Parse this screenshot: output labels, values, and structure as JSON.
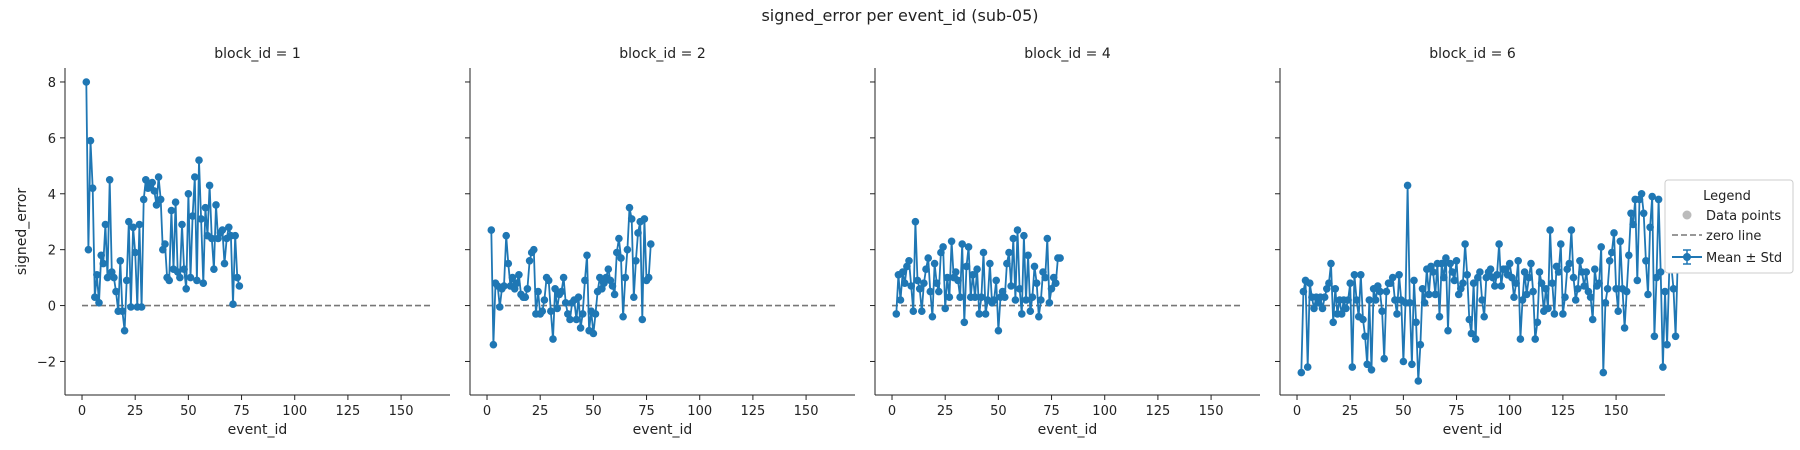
{
  "chart_data": {
    "type": "line",
    "title": "signed_error per event_id (sub-05)",
    "xlabel": "event_id",
    "ylabel": "signed_error",
    "xlim": [
      -8,
      173
    ],
    "ylim": [
      -3.2,
      8.5
    ],
    "x_ticks": [
      0,
      25,
      50,
      75,
      100,
      125,
      150
    ],
    "y_ticks": [
      -2,
      0,
      2,
      4,
      6,
      8
    ],
    "x_tick_labels": [
      "0",
      "25",
      "50",
      "75",
      "100",
      "125",
      "150"
    ],
    "y_tick_labels": [
      "−2",
      "0",
      "2",
      "4",
      "6",
      "8"
    ],
    "reference_line": {
      "y": 0,
      "x_range": [
        0,
        165
      ],
      "style": "dashed",
      "color": "#777777"
    },
    "color": "#1f77b4",
    "legend": {
      "title": "Legend",
      "placement": "right",
      "entries": [
        "Data points",
        "zero line",
        "Mean ± Std"
      ]
    },
    "panels": [
      {
        "title": "block_id = 1",
        "x_start": 2,
        "values": [
          8.0,
          2.0,
          5.9,
          4.2,
          0.3,
          1.1,
          0.1,
          1.8,
          1.5,
          2.9,
          1.0,
          4.5,
          1.2,
          1.0,
          0.5,
          -0.2,
          1.6,
          -0.2,
          -0.9,
          0.9,
          3.0,
          -0.05,
          2.8,
          1.9,
          -0.05,
          2.9,
          -0.05,
          3.8,
          4.5,
          4.2,
          4.3,
          4.4,
          4.1,
          3.6,
          4.6,
          3.8,
          2.0,
          2.2,
          1.0,
          0.9,
          3.4,
          1.3,
          3.7,
          1.2,
          1.0,
          2.9,
          1.3,
          0.6,
          4.0,
          1.0,
          3.2,
          4.6,
          0.9,
          5.2,
          3.1,
          0.8,
          3.5,
          2.5,
          4.3,
          2.4,
          1.3,
          3.6,
          2.4,
          2.6,
          2.7,
          1.5,
          2.4,
          2.8,
          2.5,
          0.05,
          2.5,
          1.0,
          0.7
        ]
      },
      {
        "title": "block_id = 2",
        "x_start": 2,
        "values": [
          2.7,
          -1.4,
          0.8,
          0.7,
          -0.05,
          0.6,
          0.7,
          2.5,
          1.5,
          0.7,
          1.0,
          0.6,
          0.8,
          1.1,
          0.4,
          0.3,
          0.3,
          0.6,
          1.6,
          1.9,
          2.0,
          -0.3,
          0.5,
          -0.3,
          -0.2,
          0.2,
          1.0,
          0.9,
          -0.2,
          -1.2,
          0.6,
          -0.1,
          0.4,
          0.5,
          1.0,
          0.1,
          -0.3,
          -0.5,
          0.1,
          0.2,
          -0.5,
          0.3,
          -0.8,
          -0.3,
          0.9,
          1.8,
          -0.9,
          -0.2,
          -1.0,
          -0.3,
          0.5,
          1.0,
          0.6,
          0.8,
          1.0,
          1.3,
          0.9,
          0.7,
          0.4,
          1.9,
          2.4,
          1.7,
          -0.4,
          1.0,
          2.0,
          3.5,
          3.1,
          0.3,
          1.6,
          2.6,
          3.0,
          -0.5,
          3.1,
          0.9,
          1.0,
          2.2
        ]
      },
      {
        "title": "block_id = 4",
        "x_start": 2,
        "values": [
          -0.3,
          1.1,
          0.2,
          1.2,
          0.8,
          1.4,
          1.6,
          0.7,
          -0.2,
          3.0,
          0.9,
          0.6,
          -0.2,
          0.8,
          1.3,
          1.7,
          0.5,
          -0.4,
          1.5,
          0.8,
          0.5,
          1.9,
          2.1,
          -0.1,
          1.0,
          0.3,
          2.3,
          1.0,
          1.2,
          0.9,
          0.3,
          2.2,
          -0.6,
          1.4,
          2.1,
          0.3,
          1.1,
          0.3,
          1.3,
          -0.3,
          0.3,
          1.9,
          -0.3,
          0.2,
          1.5,
          0.1,
          0.2,
          0.9,
          -0.9,
          0.3,
          0.5,
          0.3,
          1.5,
          1.9,
          0.7,
          2.4,
          0.2,
          2.7,
          0.6,
          -0.3,
          2.5,
          0.2,
          1.8,
          -0.2,
          0.3,
          1.4,
          0.8,
          -0.4,
          0.2,
          1.2,
          1.0,
          2.4,
          0.1,
          0.6,
          1.0,
          0.8,
          1.7,
          1.7
        ]
      },
      {
        "title": "block_id = 6",
        "x_start": 2,
        "values": [
          -2.4,
          0.5,
          0.9,
          -2.2,
          0.8,
          0.3,
          -0.1,
          0.3,
          0.1,
          0.3,
          -0.1,
          0.3,
          0.6,
          0.8,
          1.5,
          -0.6,
          0.6,
          -0.3,
          0.2,
          -0.3,
          0.2,
          -0.1,
          0.2,
          0.8,
          -2.2,
          1.1,
          0.2,
          -0.4,
          1.1,
          -0.5,
          -1.1,
          -2.1,
          0.2,
          -2.3,
          0.6,
          0.2,
          0.7,
          0.5,
          -0.2,
          -1.9,
          0.5,
          0.8,
          0.8,
          1.0,
          0.2,
          -0.3,
          1.1,
          0.2,
          -2.0,
          0.1,
          4.3,
          0.1,
          -2.1,
          0.9,
          -0.6,
          -2.7,
          -1.4,
          0.6,
          0.1,
          1.3,
          0.4,
          1.4,
          1.2,
          0.4,
          1.5,
          -0.4,
          1.5,
          1.0,
          1.7,
          -0.9,
          1.5,
          1.2,
          0.9,
          1.6,
          0.4,
          0.6,
          0.8,
          2.2,
          1.1,
          -0.5,
          -1.0,
          0.8,
          -1.2,
          1.0,
          1.2,
          0.2,
          -0.4,
          1.0,
          1.2,
          1.3,
          1.0,
          0.7,
          1.1,
          2.2,
          0.7,
          1.3,
          1.3,
          1.1,
          1.5,
          1.0,
          0.3,
          0.8,
          1.6,
          -1.2,
          0.2,
          1.2,
          0.4,
          1.0,
          1.5,
          0.5,
          -1.2,
          -0.6,
          1.2,
          0.8,
          -0.2,
          0.6,
          -0.1,
          2.7,
          0.8,
          -0.3,
          1.4,
          1.2,
          2.2,
          -0.3,
          0.3,
          1.3,
          1.5,
          2.7,
          1.0,
          0.2,
          0.6,
          1.6,
          1.2,
          0.7,
          1.2,
          0.5,
          0.3,
          -0.5,
          1.3,
          0.7,
          0.8,
          2.1,
          -2.4,
          0.1,
          0.6,
          1.6,
          1.9,
          2.6,
          0.6,
          -0.2,
          2.3,
          0.6,
          -0.8,
          0.5,
          1.8,
          3.3,
          2.9,
          3.8,
          0.9,
          3.8,
          4.0,
          3.3,
          1.6,
          0.4,
          2.8,
          3.9,
          -1.1,
          1.0,
          3.8,
          1.2,
          -2.2,
          0.5,
          -1.4,
          1.3,
          1.4,
          0.6,
          -1.1,
          1.7
        ]
      }
    ]
  }
}
